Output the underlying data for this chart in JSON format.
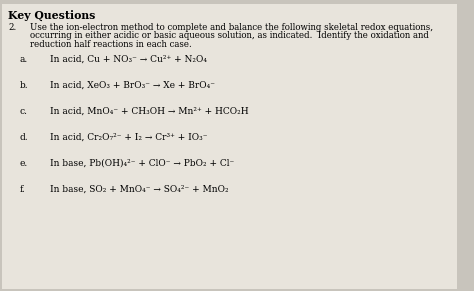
{
  "bg_color": "#c8c4bc",
  "paper_color": "#e8e4dc",
  "title": "Key Questions",
  "question_num": "2.",
  "question_line1": "Use the ion-electron method to complete and balance the following skeletal redox equations,",
  "question_line2": "occurring in either acidic or basic aqueous solution, as indicated.  Identify the oxidation and",
  "question_line3": "reduction half reactions in each case.",
  "lines": [
    {
      "label": "a.",
      "eq": "In acid, Cu + NO₃⁻ → Cu²⁺ + N₂O₄"
    },
    {
      "label": "b.",
      "eq": "In acid, XeO₃ + BrO₃⁻ → Xe + BrO₄⁻"
    },
    {
      "label": "c.",
      "eq": "In acid, MnO₄⁻ + CH₃OH → Mn²⁺ + HCO₂H"
    },
    {
      "label": "d.",
      "eq": "In acid, Cr₂O₇²⁻ + I₂ → Cr³⁺ + IO₃⁻"
    },
    {
      "label": "e.",
      "eq": "In base, Pb(OH)₄²⁻ + ClO⁻ → PbO₂ + Cl⁻"
    },
    {
      "label": "f.",
      "eq": "In base, SO₂ + MnO₄⁻ → SO₄²⁻ + MnO₂"
    }
  ],
  "font_size_title": 7.8,
  "font_size_body": 6.2,
  "font_size_eq": 6.5
}
